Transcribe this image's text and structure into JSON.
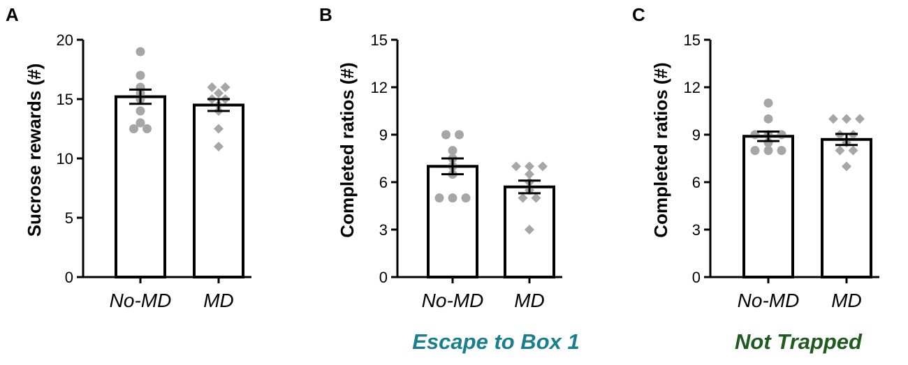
{
  "colors": {
    "axis": "#000000",
    "bar_fill": "#ffffff",
    "bar_edge": "#000000",
    "points": "#a6a6a6",
    "subtitle_B": "#1a7f8c",
    "subtitle_C": "#1f5a1f"
  },
  "chart_data": [
    {
      "type": "bar",
      "panel": "A",
      "categories": [
        "No-MD",
        "MD"
      ],
      "values": [
        15.2,
        14.5
      ],
      "sem": [
        0.6,
        0.5
      ],
      "ylabel": "Sucrose rewards (#)",
      "xlabel": "",
      "title": "",
      "ylim": [
        0,
        20
      ],
      "yticks": [
        "0",
        "5",
        "10",
        "15",
        "20"
      ],
      "grid": false,
      "series": [
        {
          "category": "No-MD",
          "marker": "circle",
          "points": [
            19,
            17,
            16,
            15.5,
            15,
            14,
            13,
            12.5,
            12.5
          ]
        },
        {
          "category": "MD",
          "marker": "diamond",
          "points": [
            16,
            16,
            15.5,
            15,
            15,
            14.5,
            14,
            12.5,
            11
          ]
        }
      ]
    },
    {
      "type": "bar",
      "panel": "B",
      "categories": [
        "No-MD",
        "MD"
      ],
      "values": [
        7.0,
        5.7
      ],
      "sem": [
        0.5,
        0.4
      ],
      "ylabel": "Completed ratios (#)",
      "xlabel": "",
      "title": "Escape to Box 1",
      "ylim": [
        0,
        15
      ],
      "yticks": [
        "0",
        "3",
        "6",
        "9",
        "12",
        "15"
      ],
      "grid": false,
      "series": [
        {
          "category": "No-MD",
          "marker": "circle",
          "points": [
            9,
            9,
            8,
            7.5,
            7,
            6.5,
            5,
            5,
            5
          ]
        },
        {
          "category": "MD",
          "marker": "diamond",
          "points": [
            7,
            7,
            7,
            6.5,
            6,
            5.5,
            5,
            5,
            3
          ]
        }
      ]
    },
    {
      "type": "bar",
      "panel": "C",
      "categories": [
        "No-MD",
        "MD"
      ],
      "values": [
        8.9,
        8.7
      ],
      "sem": [
        0.3,
        0.35
      ],
      "ylabel": "Completed ratios (#)",
      "xlabel": "",
      "title": "Not Trapped",
      "ylim": [
        0,
        15
      ],
      "yticks": [
        "0",
        "3",
        "6",
        "9",
        "12",
        "15"
      ],
      "grid": false,
      "series": [
        {
          "category": "No-MD",
          "marker": "circle",
          "points": [
            11,
            10,
            9,
            9,
            9,
            8.5,
            8,
            8,
            8
          ]
        },
        {
          "category": "MD",
          "marker": "diamond",
          "points": [
            10,
            10,
            10,
            9,
            9,
            8.5,
            8,
            8,
            7
          ]
        }
      ]
    }
  ]
}
